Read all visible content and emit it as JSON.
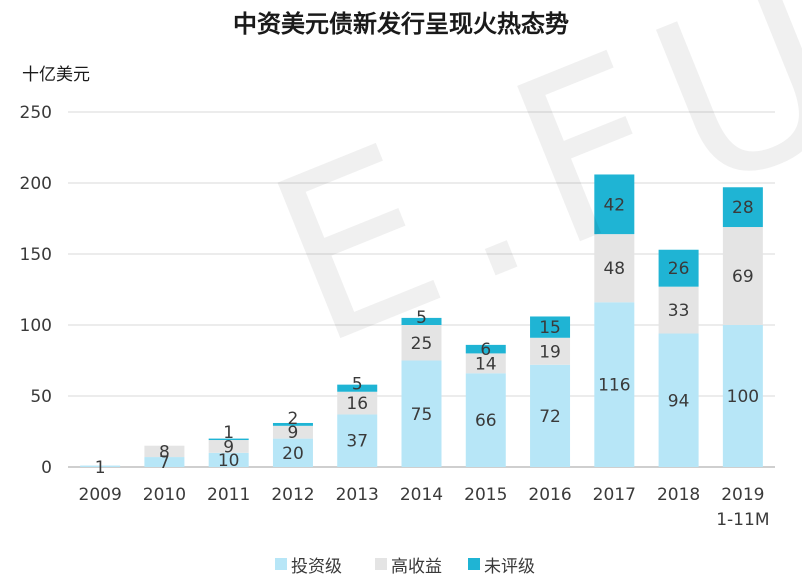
{
  "watermark": "E.FUN",
  "chart_data": {
    "type": "bar",
    "stacked": true,
    "title": "中资美元债新发行呈现火热态势",
    "ylabel": "十亿美元",
    "xlabel": "",
    "ylim": [
      0,
      250
    ],
    "yticks": [
      0,
      50,
      100,
      150,
      200,
      250
    ],
    "categories": [
      "2009",
      "2010",
      "2011",
      "2012",
      "2013",
      "2014",
      "2015",
      "2016",
      "2017",
      "2018",
      "2019\n1-11M"
    ],
    "series": [
      {
        "name": "投资级",
        "color": "#b7e6f7",
        "values": [
          1,
          7,
          10,
          20,
          37,
          75,
          66,
          72,
          116,
          94,
          100
        ]
      },
      {
        "name": "高收益",
        "color": "#e4e4e4",
        "values": [
          0,
          8,
          9,
          9,
          16,
          25,
          14,
          19,
          48,
          33,
          69
        ]
      },
      {
        "name": "未评级",
        "color": "#1fb4d4",
        "values": [
          0,
          0,
          1,
          2,
          5,
          5,
          6,
          15,
          42,
          26,
          28
        ]
      }
    ],
    "legend_position": "bottom",
    "grid": true,
    "data_labels": true
  }
}
